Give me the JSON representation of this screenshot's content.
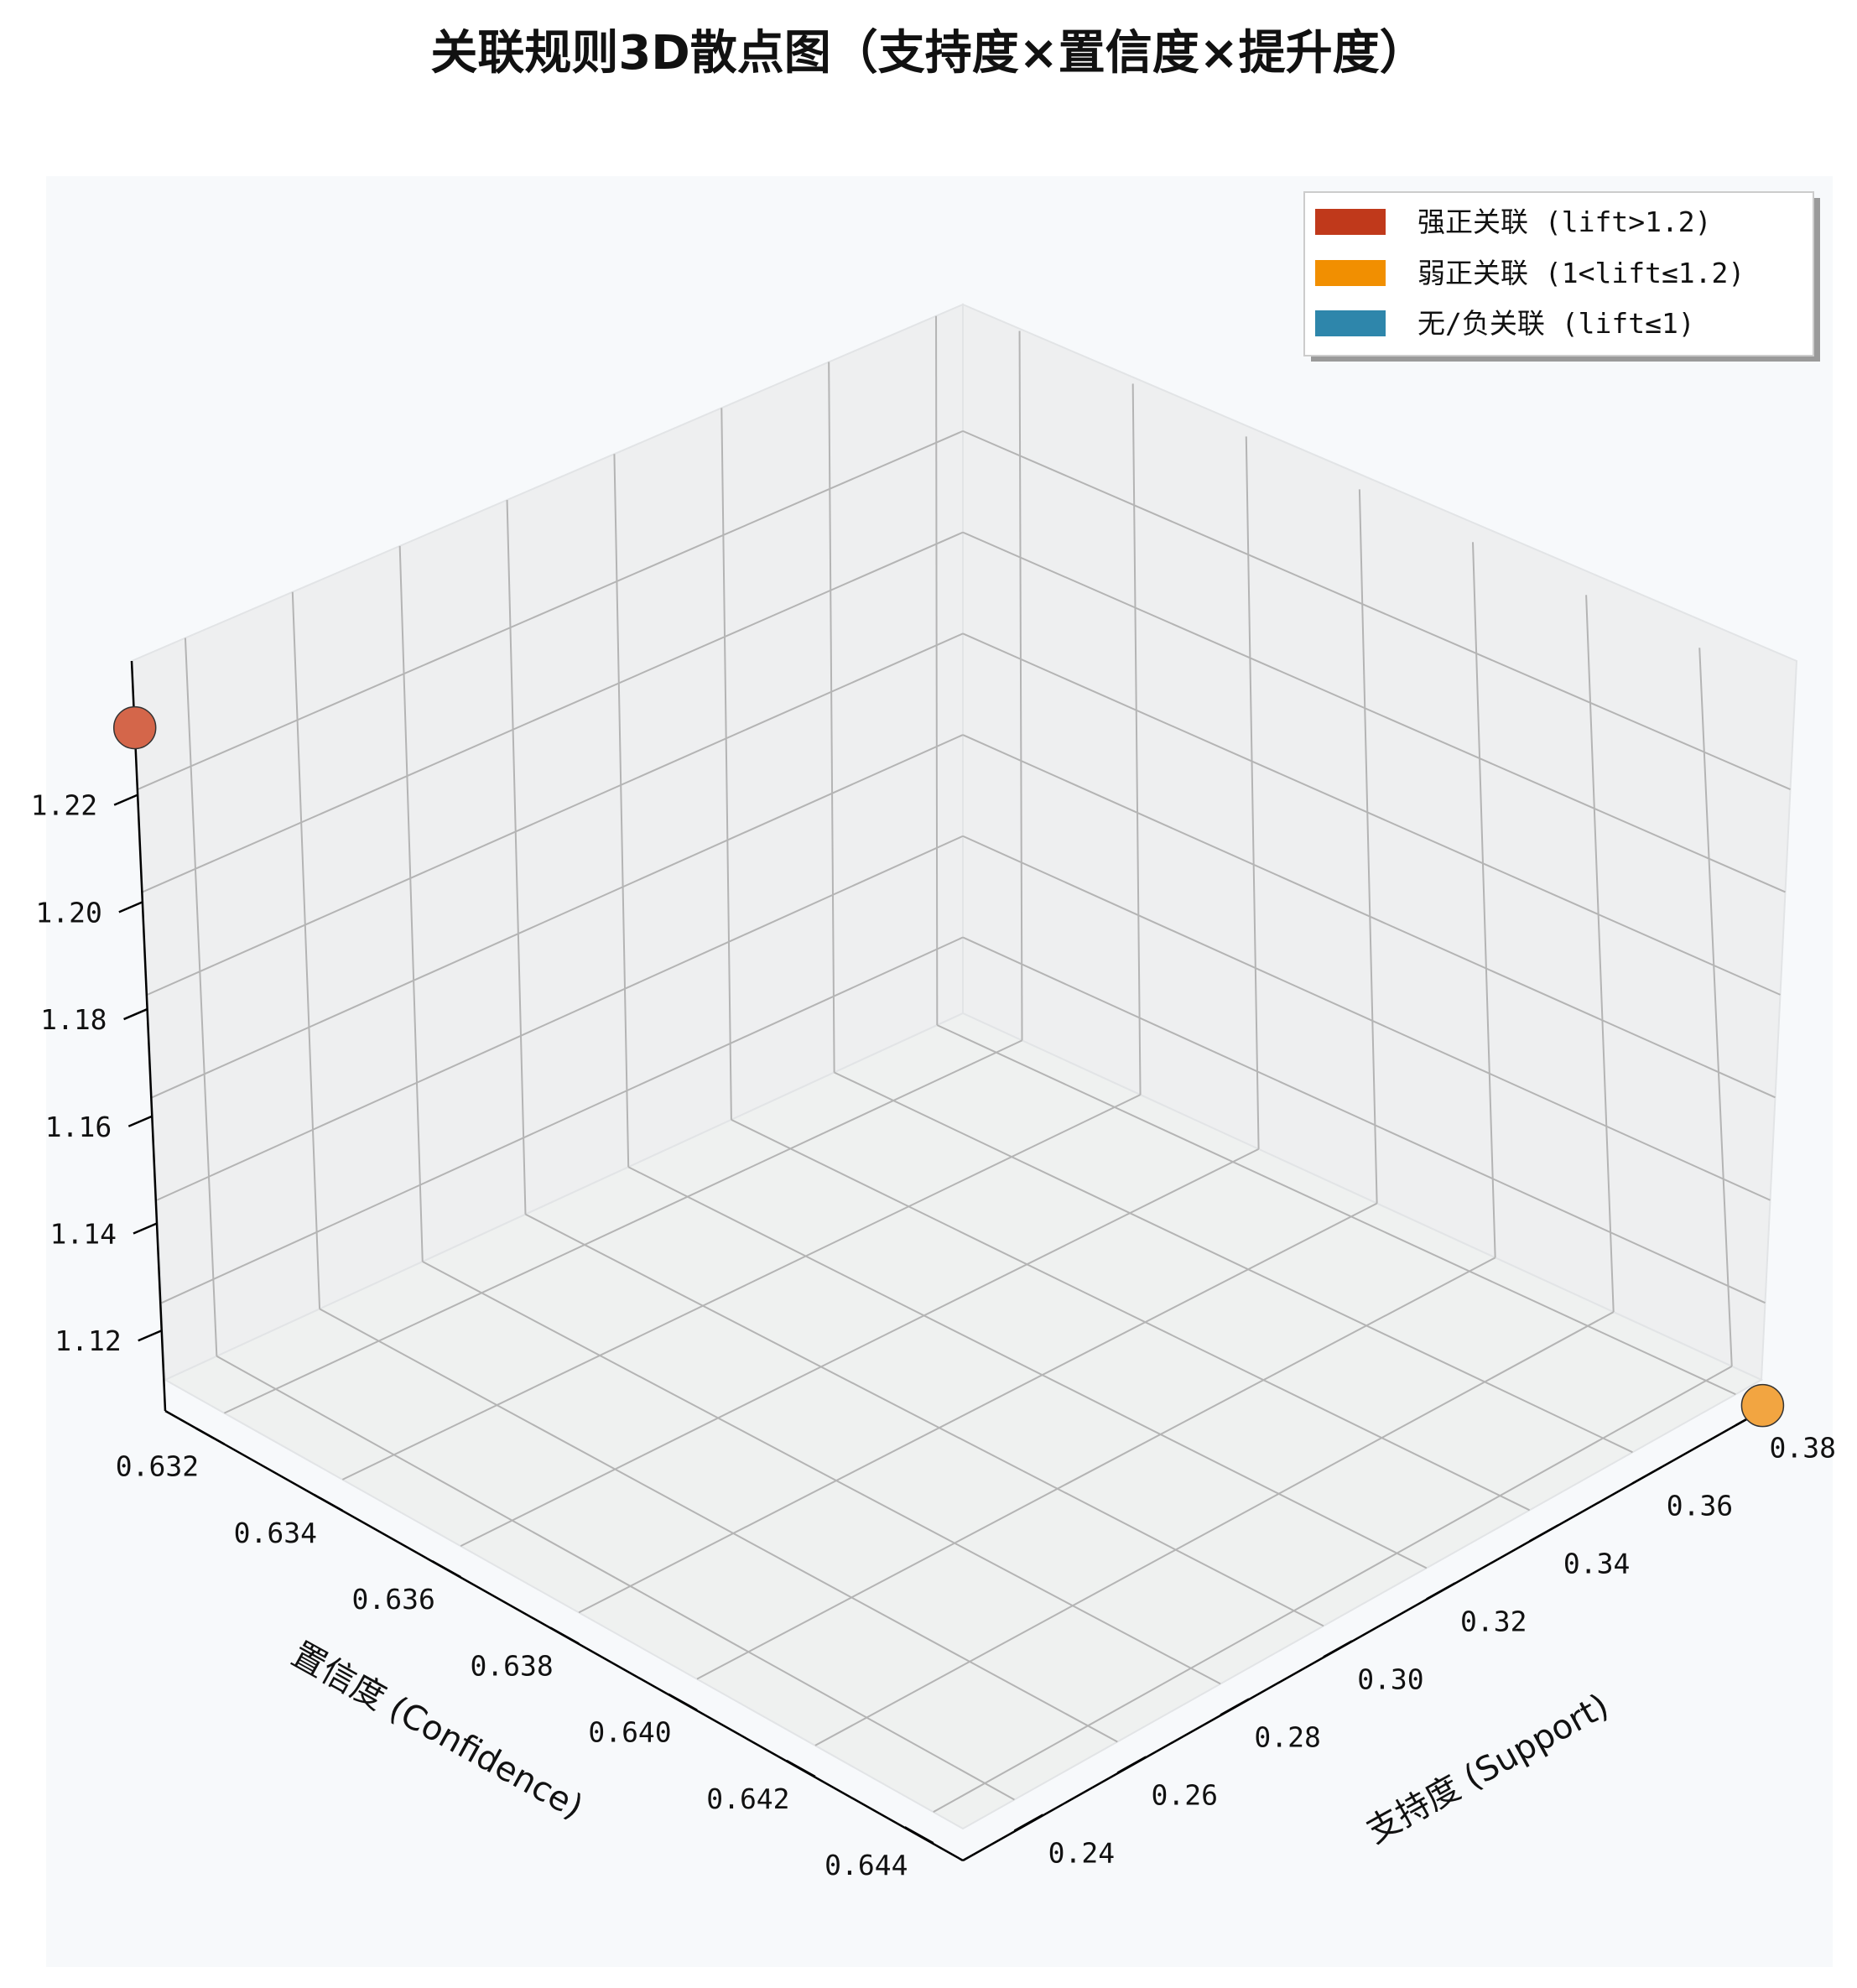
{
  "chart_data": {
    "type": "scatter3d",
    "title": "关联规则3D散点图（支持度×置信度×提升度）",
    "xlabel": "支持度 (Support)",
    "ylabel": "置信度 (Confidence)",
    "zlabel": "",
    "x_ticks": [
      "0.24",
      "0.26",
      "0.28",
      "0.30",
      "0.32",
      "0.34",
      "0.36",
      "0.38"
    ],
    "y_ticks": [
      "0.632",
      "0.634",
      "0.636",
      "0.638",
      "0.640",
      "0.642",
      "0.644"
    ],
    "z_ticks": [
      "1.12",
      "1.14",
      "1.16",
      "1.18",
      "1.20",
      "1.22"
    ],
    "xlim": [
      0.23,
      0.385
    ],
    "ylim": [
      0.631,
      0.6445
    ],
    "zlim": [
      1.105,
      1.245
    ],
    "grid": true,
    "legend_position": "top-right",
    "legend": [
      {
        "label": "强正关联 (lift>1.2)",
        "color": "#c0391b"
      },
      {
        "label": "弱正关联 (1<lift≤1.2)",
        "color": "#f18f01"
      },
      {
        "label": "无/负关联 (lift≤1)",
        "color": "#2e86ab"
      }
    ],
    "points": [
      {
        "support": 0.23,
        "confidence": 0.631,
        "lift": 1.232,
        "category": "强正关联",
        "color": "#d4664a"
      },
      {
        "support": 0.385,
        "confidence": 0.6445,
        "lift": 1.1,
        "category": "弱正关联",
        "color": "#f2a541"
      }
    ]
  }
}
